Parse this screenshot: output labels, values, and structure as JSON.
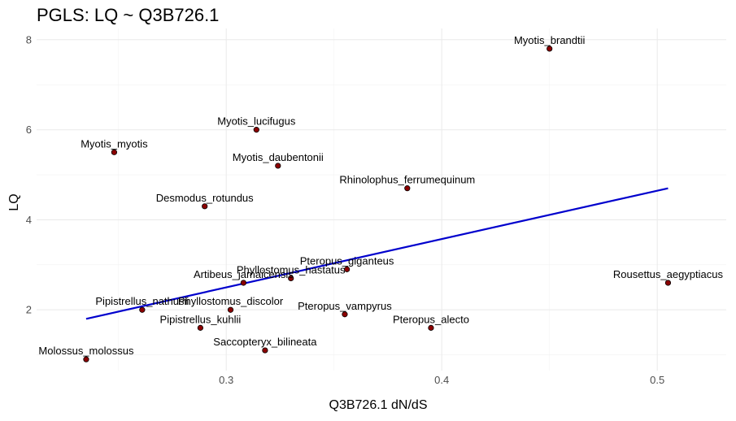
{
  "chart_data": {
    "type": "scatter",
    "title": "PGLS: LQ ~ Q3B726.1",
    "xlabel": "Q3B726.1 dN/dS",
    "ylabel": "LQ",
    "xlim": [
      0.212,
      0.532
    ],
    "ylim": [
      0.65,
      8.25
    ],
    "x_ticks": [
      0.3,
      0.4,
      0.5
    ],
    "x_tick_labels": [
      "0.3",
      "0.4",
      "0.5"
    ],
    "y_ticks": [
      2,
      4,
      6,
      8
    ],
    "y_tick_labels": [
      "2",
      "4",
      "6",
      "8"
    ],
    "grid": true,
    "point_color": "#8b0000",
    "line_color": "#0000cd",
    "points": [
      {
        "label": "Myotis_brandtii",
        "x": 0.45,
        "y": 7.8
      },
      {
        "label": "Myotis_lucifugus",
        "x": 0.314,
        "y": 6.0
      },
      {
        "label": "Myotis_myotis",
        "x": 0.248,
        "y": 5.5
      },
      {
        "label": "Myotis_daubentonii",
        "x": 0.324,
        "y": 5.2
      },
      {
        "label": "Rhinolophus_ferrumequinum",
        "x": 0.384,
        "y": 4.7
      },
      {
        "label": "Desmodus_rotundus",
        "x": 0.29,
        "y": 4.3
      },
      {
        "label": "Pteropus_giganteus",
        "x": 0.356,
        "y": 2.9
      },
      {
        "label": "Phyllostomus_hastatus",
        "x": 0.33,
        "y": 2.7
      },
      {
        "label": "Artibeus_jamaicensis",
        "x": 0.308,
        "y": 2.6
      },
      {
        "label": "Rousettus_aegyptiacus",
        "x": 0.505,
        "y": 2.6
      },
      {
        "label": "Pipistrellus_nathusii",
        "x": 0.261,
        "y": 2.0
      },
      {
        "label": "Phyllostomus_discolor",
        "x": 0.302,
        "y": 2.0
      },
      {
        "label": "Pteropus_vampyrus",
        "x": 0.355,
        "y": 1.9
      },
      {
        "label": "Pipistrellus_kuhlii",
        "x": 0.288,
        "y": 1.6
      },
      {
        "label": "Pteropus_alecto",
        "x": 0.395,
        "y": 1.6
      },
      {
        "label": "Saccopteryx_bilineata",
        "x": 0.318,
        "y": 1.1
      },
      {
        "label": "Molossus_molossus",
        "x": 0.235,
        "y": 0.9
      }
    ],
    "fit_line": {
      "x": [
        0.235,
        0.505
      ],
      "y": [
        1.8,
        4.7
      ]
    }
  }
}
